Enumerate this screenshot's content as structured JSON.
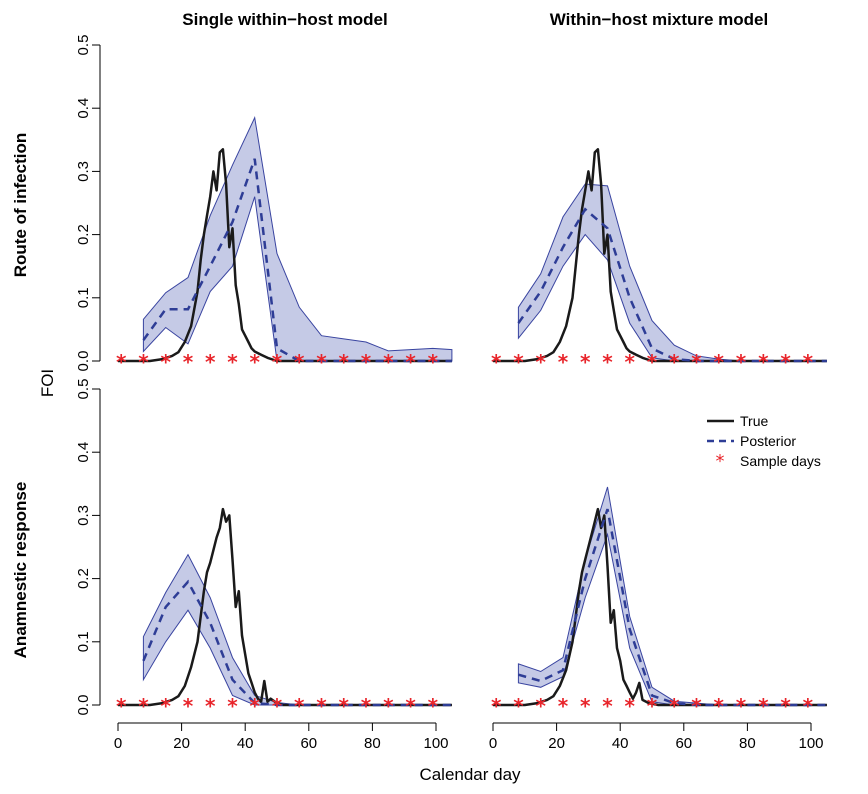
{
  "chart_data": {
    "type": "line",
    "xlabel": "Calendar day",
    "ylabel": "FOI",
    "col_titles": [
      "Single within−host model",
      "Within−host mixture model"
    ],
    "row_labels": [
      "Route of infection",
      "Anamnestic response"
    ],
    "xlim": [
      0,
      105
    ],
    "ylim": [
      0,
      0.5
    ],
    "x_ticks": [
      "0",
      "20",
      "40",
      "60",
      "80",
      "100"
    ],
    "y_ticks": [
      "0.0",
      "0.1",
      "0.2",
      "0.3",
      "0.4",
      "0.5"
    ],
    "legend": {
      "position": "top-right",
      "entries": [
        "True",
        "Posterior",
        "Sample days"
      ]
    },
    "colors": {
      "true": "#1a1a1a",
      "posterior": "#2e3d96",
      "band": "#c5cae6",
      "band_edge": "#3944a0",
      "sample": "#e8252b"
    },
    "sample_days": [
      1,
      8,
      15,
      22,
      29,
      36,
      43,
      50,
      57,
      64,
      71,
      78,
      85,
      92,
      99
    ],
    "panels": [
      {
        "row": 0,
        "col": 0,
        "true": [
          [
            0,
            0
          ],
          [
            10,
            0
          ],
          [
            14,
            0.003
          ],
          [
            17,
            0.008
          ],
          [
            19,
            0.014
          ],
          [
            21,
            0.03
          ],
          [
            23,
            0.055
          ],
          [
            25,
            0.11
          ],
          [
            26,
            0.16
          ],
          [
            27,
            0.2
          ],
          [
            28,
            0.23
          ],
          [
            29,
            0.26
          ],
          [
            30,
            0.3
          ],
          [
            31,
            0.27
          ],
          [
            32,
            0.33
          ],
          [
            33,
            0.335
          ],
          [
            34,
            0.28
          ],
          [
            35,
            0.18
          ],
          [
            36,
            0.21
          ],
          [
            37,
            0.12
          ],
          [
            38,
            0.09
          ],
          [
            39,
            0.05
          ],
          [
            40,
            0.04
          ],
          [
            41,
            0.03
          ],
          [
            42,
            0.02
          ],
          [
            43,
            0.015
          ],
          [
            45,
            0.01
          ],
          [
            47,
            0.005
          ],
          [
            50,
            0
          ],
          [
            105,
            0
          ]
        ],
        "posterior": [
          [
            8,
            0.033
          ],
          [
            15,
            0.082
          ],
          [
            22,
            0.082
          ],
          [
            29,
            0.15
          ],
          [
            36,
            0.22
          ],
          [
            43,
            0.32
          ],
          [
            50,
            0.02
          ],
          [
            57,
            0
          ],
          [
            64,
            0
          ],
          [
            71,
            0
          ],
          [
            78,
            0
          ],
          [
            85,
            0
          ],
          [
            92,
            0
          ],
          [
            99,
            0
          ],
          [
            105,
            0
          ]
        ],
        "lower": [
          [
            8,
            0.015
          ],
          [
            15,
            0.053
          ],
          [
            22,
            0.027
          ],
          [
            29,
            0.11
          ],
          [
            36,
            0.15
          ],
          [
            43,
            0.26
          ],
          [
            50,
            0
          ],
          [
            57,
            0
          ],
          [
            64,
            0
          ],
          [
            71,
            0
          ],
          [
            78,
            0
          ],
          [
            85,
            0
          ],
          [
            92,
            0
          ],
          [
            99,
            0
          ],
          [
            105,
            0
          ]
        ],
        "upper": [
          [
            8,
            0.066
          ],
          [
            15,
            0.108
          ],
          [
            22,
            0.132
          ],
          [
            29,
            0.23
          ],
          [
            36,
            0.31
          ],
          [
            43,
            0.385
          ],
          [
            50,
            0.17
          ],
          [
            57,
            0.085
          ],
          [
            64,
            0.04
          ],
          [
            71,
            0.035
          ],
          [
            78,
            0.03
          ],
          [
            85,
            0.016
          ],
          [
            92,
            0.018
          ],
          [
            99,
            0.02
          ],
          [
            105,
            0.018
          ]
        ]
      },
      {
        "row": 0,
        "col": 1,
        "true": [
          [
            0,
            0
          ],
          [
            10,
            0
          ],
          [
            14,
            0.003
          ],
          [
            17,
            0.008
          ],
          [
            19,
            0.014
          ],
          [
            21,
            0.03
          ],
          [
            23,
            0.055
          ],
          [
            25,
            0.1
          ],
          [
            26,
            0.15
          ],
          [
            27,
            0.2
          ],
          [
            28,
            0.24
          ],
          [
            29,
            0.27
          ],
          [
            30,
            0.3
          ],
          [
            31,
            0.27
          ],
          [
            32,
            0.33
          ],
          [
            33,
            0.335
          ],
          [
            34,
            0.28
          ],
          [
            35,
            0.17
          ],
          [
            36,
            0.2
          ],
          [
            37,
            0.11
          ],
          [
            38,
            0.08
          ],
          [
            39,
            0.05
          ],
          [
            40,
            0.04
          ],
          [
            41,
            0.03
          ],
          [
            42,
            0.02
          ],
          [
            43,
            0.015
          ],
          [
            45,
            0.01
          ],
          [
            47,
            0.005
          ],
          [
            50,
            0
          ],
          [
            105,
            0
          ]
        ],
        "posterior": [
          [
            8,
            0.06
          ],
          [
            15,
            0.11
          ],
          [
            22,
            0.18
          ],
          [
            29,
            0.24
          ],
          [
            36,
            0.21
          ],
          [
            43,
            0.1
          ],
          [
            50,
            0.02
          ],
          [
            57,
            0.003
          ],
          [
            64,
            0
          ],
          [
            71,
            0
          ],
          [
            78,
            0
          ],
          [
            85,
            0
          ],
          [
            92,
            0
          ],
          [
            99,
            0
          ],
          [
            105,
            0
          ]
        ],
        "lower": [
          [
            8,
            0.036
          ],
          [
            15,
            0.08
          ],
          [
            22,
            0.15
          ],
          [
            29,
            0.2
          ],
          [
            36,
            0.16
          ],
          [
            43,
            0.06
          ],
          [
            50,
            0.005
          ],
          [
            57,
            0
          ],
          [
            64,
            0
          ],
          [
            71,
            0
          ],
          [
            78,
            0
          ],
          [
            85,
            0
          ],
          [
            92,
            0
          ],
          [
            99,
            0
          ],
          [
            105,
            0
          ]
        ],
        "upper": [
          [
            8,
            0.085
          ],
          [
            15,
            0.138
          ],
          [
            22,
            0.228
          ],
          [
            29,
            0.28
          ],
          [
            36,
            0.277
          ],
          [
            43,
            0.15
          ],
          [
            50,
            0.064
          ],
          [
            57,
            0.025
          ],
          [
            64,
            0.008
          ],
          [
            71,
            0.003
          ],
          [
            78,
            0
          ],
          [
            85,
            0
          ],
          [
            92,
            0
          ],
          [
            99,
            0
          ],
          [
            105,
            0
          ]
        ]
      },
      {
        "row": 1,
        "col": 0,
        "true": [
          [
            0,
            0
          ],
          [
            10,
            0
          ],
          [
            14,
            0.003
          ],
          [
            17,
            0.008
          ],
          [
            19,
            0.014
          ],
          [
            21,
            0.03
          ],
          [
            23,
            0.06
          ],
          [
            25,
            0.1
          ],
          [
            26,
            0.14
          ],
          [
            27,
            0.18
          ],
          [
            28,
            0.21
          ],
          [
            29,
            0.225
          ],
          [
            30,
            0.245
          ],
          [
            31,
            0.265
          ],
          [
            32,
            0.28
          ],
          [
            33,
            0.31
          ],
          [
            34,
            0.29
          ],
          [
            35,
            0.3
          ],
          [
            36,
            0.23
          ],
          [
            37,
            0.155
          ],
          [
            38,
            0.18
          ],
          [
            39,
            0.11
          ],
          [
            40,
            0.08
          ],
          [
            41,
            0.05
          ],
          [
            42,
            0.035
          ],
          [
            43,
            0.02
          ],
          [
            44,
            0.01
          ],
          [
            45,
            0.005
          ],
          [
            46,
            0.038
          ],
          [
            47,
            0.005
          ],
          [
            48,
            0.01
          ],
          [
            50,
            0.003
          ],
          [
            52,
            0
          ],
          [
            105,
            0
          ]
        ],
        "posterior": [
          [
            8,
            0.07
          ],
          [
            15,
            0.155
          ],
          [
            22,
            0.195
          ],
          [
            29,
            0.13
          ],
          [
            36,
            0.04
          ],
          [
            43,
            0.003
          ],
          [
            50,
            0
          ],
          [
            57,
            0
          ],
          [
            64,
            0
          ],
          [
            71,
            0
          ],
          [
            78,
            0
          ],
          [
            85,
            0
          ],
          [
            92,
            0
          ],
          [
            99,
            0
          ],
          [
            105,
            0
          ]
        ],
        "lower": [
          [
            8,
            0.04
          ],
          [
            15,
            0.1
          ],
          [
            22,
            0.15
          ],
          [
            29,
            0.09
          ],
          [
            36,
            0.015
          ],
          [
            43,
            0
          ],
          [
            50,
            0
          ],
          [
            57,
            0
          ],
          [
            64,
            0
          ],
          [
            71,
            0
          ],
          [
            78,
            0
          ],
          [
            85,
            0
          ],
          [
            92,
            0
          ],
          [
            99,
            0
          ],
          [
            105,
            0
          ]
        ],
        "upper": [
          [
            8,
            0.108
          ],
          [
            15,
            0.178
          ],
          [
            22,
            0.238
          ],
          [
            29,
            0.17
          ],
          [
            36,
            0.075
          ],
          [
            43,
            0.015
          ],
          [
            50,
            0.004
          ],
          [
            57,
            0
          ],
          [
            64,
            0
          ],
          [
            71,
            0
          ],
          [
            78,
            0
          ],
          [
            85,
            0
          ],
          [
            92,
            0
          ],
          [
            99,
            0
          ],
          [
            105,
            0
          ]
        ]
      },
      {
        "row": 1,
        "col": 1,
        "true": [
          [
            0,
            0
          ],
          [
            10,
            0
          ],
          [
            14,
            0.003
          ],
          [
            17,
            0.008
          ],
          [
            19,
            0.014
          ],
          [
            21,
            0.03
          ],
          [
            23,
            0.055
          ],
          [
            25,
            0.1
          ],
          [
            26,
            0.14
          ],
          [
            27,
            0.18
          ],
          [
            28,
            0.21
          ],
          [
            29,
            0.23
          ],
          [
            30,
            0.25
          ],
          [
            31,
            0.27
          ],
          [
            32,
            0.29
          ],
          [
            33,
            0.31
          ],
          [
            34,
            0.28
          ],
          [
            35,
            0.3
          ],
          [
            36,
            0.22
          ],
          [
            37,
            0.13
          ],
          [
            38,
            0.15
          ],
          [
            39,
            0.09
          ],
          [
            40,
            0.07
          ],
          [
            41,
            0.04
          ],
          [
            42,
            0.03
          ],
          [
            43,
            0.02
          ],
          [
            44,
            0.01
          ],
          [
            45,
            0.02
          ],
          [
            46,
            0.035
          ],
          [
            47,
            0.008
          ],
          [
            49,
            0.003
          ],
          [
            52,
            0
          ],
          [
            105,
            0
          ]
        ],
        "posterior": [
          [
            8,
            0.048
          ],
          [
            15,
            0.038
          ],
          [
            22,
            0.055
          ],
          [
            29,
            0.2
          ],
          [
            36,
            0.31
          ],
          [
            43,
            0.12
          ],
          [
            50,
            0.015
          ],
          [
            57,
            0.003
          ],
          [
            64,
            0
          ],
          [
            71,
            0
          ],
          [
            78,
            0
          ],
          [
            85,
            0
          ],
          [
            92,
            0
          ],
          [
            99,
            0
          ],
          [
            105,
            0
          ]
        ],
        "lower": [
          [
            8,
            0.035
          ],
          [
            15,
            0.028
          ],
          [
            22,
            0.045
          ],
          [
            29,
            0.17
          ],
          [
            36,
            0.27
          ],
          [
            43,
            0.09
          ],
          [
            50,
            0.005
          ],
          [
            57,
            0
          ],
          [
            64,
            0
          ],
          [
            71,
            0
          ],
          [
            78,
            0
          ],
          [
            85,
            0
          ],
          [
            92,
            0
          ],
          [
            99,
            0
          ],
          [
            105,
            0
          ]
        ],
        "upper": [
          [
            8,
            0.065
          ],
          [
            15,
            0.053
          ],
          [
            22,
            0.075
          ],
          [
            29,
            0.23
          ],
          [
            36,
            0.345
          ],
          [
            43,
            0.14
          ],
          [
            50,
            0.028
          ],
          [
            57,
            0.006
          ],
          [
            64,
            0.003
          ],
          [
            71,
            0
          ],
          [
            78,
            0
          ],
          [
            85,
            0
          ],
          [
            92,
            0
          ],
          [
            99,
            0
          ],
          [
            105,
            0
          ]
        ]
      }
    ]
  }
}
